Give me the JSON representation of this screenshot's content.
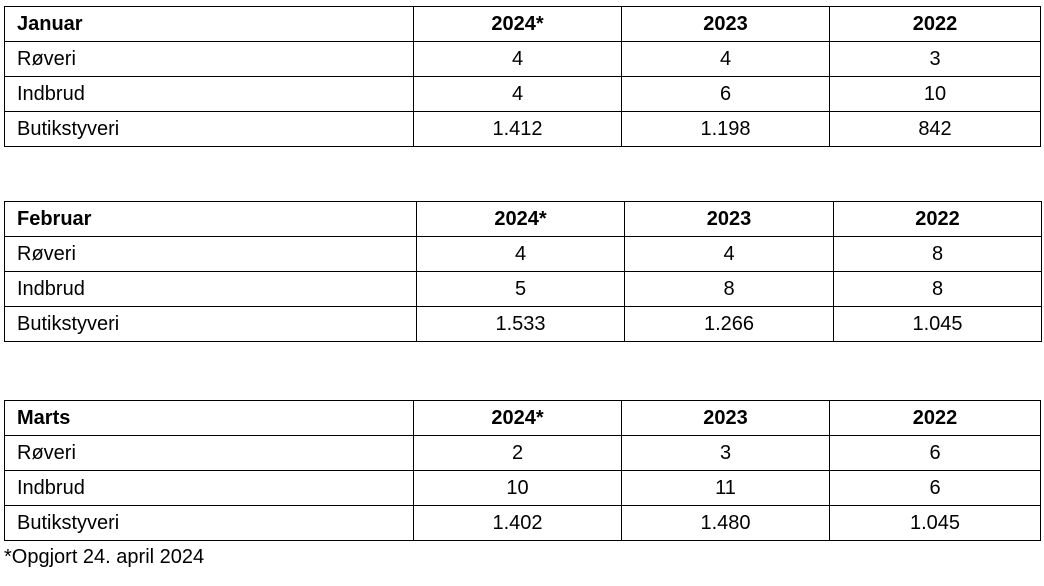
{
  "tables": [
    {
      "header": [
        "Januar",
        "2024*",
        "2023",
        "2022"
      ],
      "rows": [
        [
          "Røveri",
          "4",
          "4",
          "3"
        ],
        [
          "Indbrud",
          "4",
          "6",
          "10"
        ],
        [
          "Butikstyveri",
          "1.412",
          "1.198",
          "842"
        ]
      ]
    },
    {
      "header": [
        "Februar",
        "2024*",
        "2023",
        "2022"
      ],
      "rows": [
        [
          "Røveri",
          "4",
          "4",
          "8"
        ],
        [
          "Indbrud",
          "5",
          "8",
          "8"
        ],
        [
          "Butikstyveri",
          "1.533",
          "1.266",
          "1.045"
        ]
      ]
    },
    {
      "header": [
        "Marts",
        "2024*",
        "2023",
        "2022"
      ],
      "rows": [
        [
          "Røveri",
          "2",
          "3",
          "6"
        ],
        [
          "Indbrud",
          "10",
          "11",
          "6"
        ],
        [
          "Butikstyveri",
          "1.402",
          "1.480",
          "1.045"
        ]
      ]
    }
  ],
  "footnote": "*Opgjort 24. april 2024"
}
